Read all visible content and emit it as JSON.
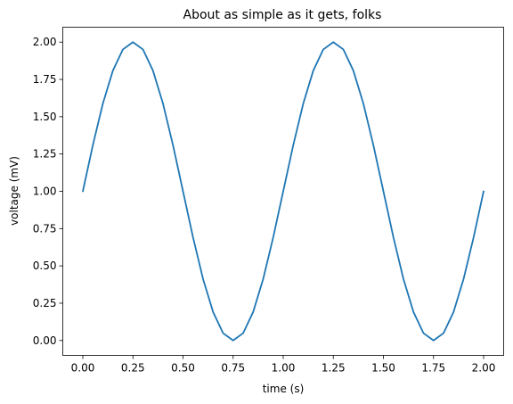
{
  "chart_data": {
    "type": "line",
    "title": "About as simple as it gets, folks",
    "xlabel": "time (s)",
    "ylabel": "voltage (mV)",
    "xlim": [
      -0.1,
      2.1
    ],
    "ylim": [
      -0.1,
      2.1
    ],
    "xticks": [
      0.0,
      0.25,
      0.5,
      0.75,
      1.0,
      1.25,
      1.5,
      1.75,
      2.0
    ],
    "xtick_labels": [
      "0.00",
      "0.25",
      "0.50",
      "0.75",
      "1.00",
      "1.25",
      "1.50",
      "1.75",
      "2.00"
    ],
    "yticks": [
      0.0,
      0.25,
      0.5,
      0.75,
      1.0,
      1.25,
      1.5,
      1.75,
      2.0
    ],
    "ytick_labels": [
      "0.00",
      "0.25",
      "0.50",
      "0.75",
      "1.00",
      "1.25",
      "1.50",
      "1.75",
      "2.00"
    ],
    "grid": false,
    "series": [
      {
        "color": "#1f77b4",
        "x": [
          0.0,
          0.05,
          0.1,
          0.15,
          0.2,
          0.25,
          0.3,
          0.35,
          0.4,
          0.45,
          0.5,
          0.55,
          0.6,
          0.65,
          0.7,
          0.75,
          0.8,
          0.85,
          0.9,
          0.95,
          1.0,
          1.05,
          1.1,
          1.15,
          1.2,
          1.25,
          1.3,
          1.35,
          1.4,
          1.45,
          1.5,
          1.55,
          1.6,
          1.65,
          1.7,
          1.75,
          1.8,
          1.85,
          1.9,
          1.95,
          2.0
        ],
        "y": [
          1.0,
          1.309,
          1.588,
          1.809,
          1.951,
          2.0,
          1.951,
          1.809,
          1.588,
          1.309,
          1.0,
          0.691,
          0.412,
          0.191,
          0.049,
          0.0,
          0.049,
          0.191,
          0.412,
          0.691,
          1.0,
          1.309,
          1.588,
          1.809,
          1.951,
          2.0,
          1.951,
          1.809,
          1.588,
          1.309,
          1.0,
          0.691,
          0.412,
          0.191,
          0.049,
          0.0,
          0.049,
          0.191,
          0.412,
          0.691,
          1.0
        ]
      }
    ]
  }
}
